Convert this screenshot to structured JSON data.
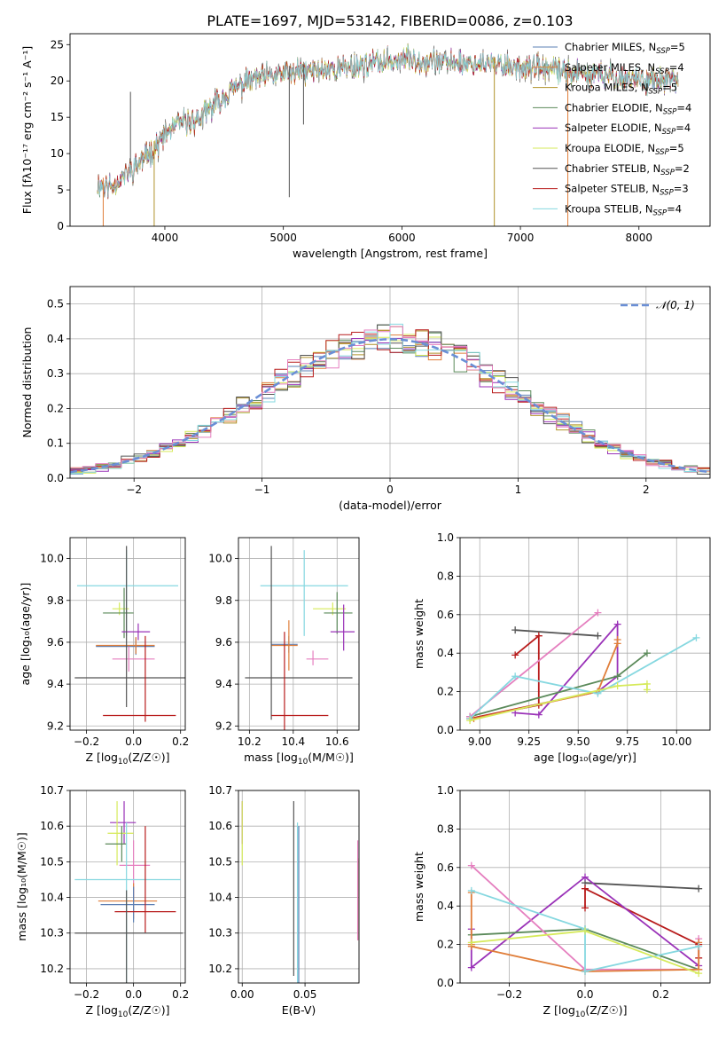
{
  "figure_title": "PLATE=1697, MJD=53142, FIBERID=0086, z=0.103",
  "colors": {
    "chabrier_miles": "#5b7fb4",
    "salpeter_miles": "#e07e3a",
    "kroupa_miles": "#b0922a",
    "chabrier_elodie": "#5b8a5a",
    "salpeter_elodie": "#9a32b8",
    "kroupa_elodie": "#d6ea5a",
    "chabrier_stelib": "#555555",
    "salpeter_stelib": "#b81c1c",
    "kroupa_stelib": "#86d8e0",
    "pink": "#e57fbf",
    "normal_curve": "#6a8fd6"
  },
  "chart_data": [
    {
      "id": "spectrum",
      "type": "line",
      "xlabel": "wavelength [Angstrom, rest frame]",
      "ylabel": "Flux [fλ10⁻¹⁷ erg cm⁻² s⁻¹ A⁻¹]",
      "xlim": [
        3200,
        8600
      ],
      "ylim": [
        0,
        26.5
      ],
      "xticks": [
        4000,
        5000,
        6000,
        7000,
        8000
      ],
      "yticks": [
        0,
        5,
        10,
        15,
        20,
        25
      ],
      "grid": false,
      "legend_position": "top-right",
      "legend": [
        {
          "label": "Chabrier MILES, N_SSP=5",
          "main": "Chabrier MILES, N",
          "sub": "SSP",
          "tail": "=5",
          "color": "#5b7fb4"
        },
        {
          "label": "Salpeter MILES, N_SSP=4",
          "main": "Salpeter MILES, N",
          "sub": "SSP",
          "tail": "=4",
          "color": "#e07e3a"
        },
        {
          "label": "Kroupa MILES, N_SSP=5",
          "main": "Kroupa MILES, N",
          "sub": "SSP",
          "tail": "=5",
          "color": "#b0922a"
        },
        {
          "label": "Chabrier ELODIE, N_SSP=4",
          "main": "Chabrier ELODIE, N",
          "sub": "SSP",
          "tail": "=4",
          "color": "#5b8a5a"
        },
        {
          "label": "Salpeter ELODIE, N_SSP=4",
          "main": "Salpeter ELODIE, N",
          "sub": "SSP",
          "tail": "=4",
          "color": "#9a32b8"
        },
        {
          "label": "Kroupa ELODIE, N_SSP=5",
          "main": "Kroupa ELODIE, N",
          "sub": "SSP",
          "tail": "=5",
          "color": "#d6ea5a"
        },
        {
          "label": "Chabrier STELIB, N_SSP=2",
          "main": "Chabrier STELIB, N",
          "sub": "SSP",
          "tail": "=2",
          "color": "#555555"
        },
        {
          "label": "Salpeter STELIB, N_SSP=3",
          "main": "Salpeter STELIB, N",
          "sub": "SSP",
          "tail": "=3",
          "color": "#b81c1c"
        },
        {
          "label": "Kroupa STELIB, N_SSP=4",
          "main": "Kroupa STELIB, N",
          "sub": "SSP",
          "tail": "=4",
          "color": "#86d8e0"
        }
      ],
      "continuum": [
        [
          3430,
          5.8
        ],
        [
          3550,
          5.5
        ],
        [
          3700,
          7.5
        ],
        [
          3800,
          9.0
        ],
        [
          3900,
          10.5
        ],
        [
          4000,
          12.5
        ],
        [
          4100,
          14.0
        ],
        [
          4300,
          14.8
        ],
        [
          4500,
          18.0
        ],
        [
          4700,
          20.0
        ],
        [
          5000,
          21.0
        ],
        [
          5500,
          21.8
        ],
        [
          6000,
          23.0
        ],
        [
          6500,
          22.5
        ],
        [
          7000,
          22.0
        ],
        [
          7500,
          21.0
        ],
        [
          8000,
          20.2
        ],
        [
          8330,
          19.8
        ]
      ],
      "dips": [
        [
          3480,
          0
        ],
        [
          3710,
          18.5
        ],
        [
          3910,
          0
        ],
        [
          5050,
          4
        ],
        [
          5170,
          14
        ],
        [
          6780,
          0
        ],
        [
          7400,
          0
        ]
      ]
    },
    {
      "id": "residuals",
      "type": "histogram",
      "xlabel": "(data-model)/error",
      "ylabel": "Normed distribution",
      "xlim": [
        -2.5,
        2.5
      ],
      "ylim": [
        0,
        0.55
      ],
      "xticks": [
        -2,
        -1,
        0,
        1,
        2
      ],
      "yticks": [
        0.0,
        0.1,
        0.2,
        0.3,
        0.4,
        0.5
      ],
      "grid": true,
      "legend_position": "top-right",
      "legend": [
        {
          "label": "𝒩(0, 1)",
          "color": "#6a8fd6"
        }
      ],
      "bin_width": 0.1
    },
    {
      "id": "age_vs_Z",
      "type": "errorbar",
      "xlabel_main": "Z [log",
      "xlabel_sub": "10",
      "xlabel_tail": "(Z/Z☉)]",
      "ylabel": "age  [log₁₀(age/yr)]",
      "xlim": [
        -0.27,
        0.22
      ],
      "ylim": [
        9.18,
        10.1
      ],
      "xticks": [
        -0.2,
        0.0,
        0.2
      ],
      "yticks": [
        9.2,
        9.4,
        9.6,
        9.8,
        10.0
      ],
      "grid": true,
      "points": [
        {
          "x": -0.03,
          "xerr": [
            0.21,
            0.22
          ],
          "y": 9.87,
          "yerr": [
            0.24,
            0.17
          ],
          "color": "#86d8e0"
        },
        {
          "x": -0.06,
          "xerr": [
            0.03,
            0.04
          ],
          "y": 9.76,
          "yerr": [
            0.03,
            0.03
          ],
          "color": "#d6ea5a"
        },
        {
          "x": -0.04,
          "xerr": [
            0.09,
            0.04
          ],
          "y": 9.74,
          "yerr": [
            0.12,
            0.12
          ],
          "color": "#5b8a5a"
        },
        {
          "x": 0.02,
          "xerr": [
            0.07,
            0.05
          ],
          "y": 9.65,
          "yerr": [
            0.04,
            0.04
          ],
          "color": "#9a32b8"
        },
        {
          "x": 0.01,
          "xerr": [
            0.17,
            0.08
          ],
          "y": 9.58,
          "yerr": [
            0.04,
            0.04
          ],
          "color": "#5b7fb4"
        },
        {
          "x": 0.01,
          "xerr": [
            0.17,
            0.08
          ],
          "y": 9.585,
          "yerr": [
            0.04,
            0.04
          ],
          "color": "#e07e3a"
        },
        {
          "x": -0.02,
          "xerr": [
            0.07,
            0.11
          ],
          "y": 9.52,
          "yerr": [
            0.06,
            0.06
          ],
          "color": "#e57fbf"
        },
        {
          "x": -0.03,
          "xerr": [
            0.22,
            0.25
          ],
          "y": 9.43,
          "yerr": [
            0.14,
            0.63
          ],
          "color": "#555555"
        },
        {
          "x": 0.05,
          "xerr": [
            0.18,
            0.13
          ],
          "y": 9.25,
          "yerr": [
            0.03,
            0.38
          ],
          "color": "#b81c1c"
        }
      ]
    },
    {
      "id": "age_vs_mass",
      "type": "errorbar",
      "xlabel_main": "mass [log",
      "xlabel_sub": "10",
      "xlabel_tail": "(M/M☉)]",
      "xlim": [
        10.15,
        10.7
      ],
      "ylim": [
        9.18,
        10.1
      ],
      "xticks": [
        10.2,
        10.4,
        10.6
      ],
      "yticks": [
        9.2,
        9.4,
        9.6,
        9.8,
        10.0
      ],
      "grid": true,
      "points": [
        {
          "x": 10.45,
          "xerr": [
            0.2,
            0.2
          ],
          "y": 9.87,
          "yerr": [
            0.24,
            0.17
          ],
          "color": "#86d8e0"
        },
        {
          "x": 10.58,
          "xerr": [
            0.09,
            0.06
          ],
          "y": 9.76,
          "yerr": [
            0.03,
            0.03
          ],
          "color": "#d6ea5a"
        },
        {
          "x": 10.6,
          "xerr": [
            0.06,
            0.07
          ],
          "y": 9.74,
          "yerr": [
            0.1,
            0.1
          ],
          "color": "#5b8a5a"
        },
        {
          "x": 10.63,
          "xerr": [
            0.06,
            0.05
          ],
          "y": 9.65,
          "yerr": [
            0.09,
            0.13
          ],
          "color": "#9a32b8"
        },
        {
          "x": 10.38,
          "xerr": [
            0.08,
            0.04
          ],
          "y": 9.59,
          "yerr": [
            0.04,
            0.04
          ],
          "color": "#5b7fb4"
        },
        {
          "x": 10.38,
          "xerr": [
            0.08,
            0.04
          ],
          "y": 9.585,
          "yerr": [
            0.12,
            0.12
          ],
          "color": "#e07e3a"
        },
        {
          "x": 10.49,
          "xerr": [
            0.03,
            0.07
          ],
          "y": 9.52,
          "yerr": [
            0.03,
            0.04
          ],
          "color": "#e57fbf"
        },
        {
          "x": 10.3,
          "xerr": [
            0.12,
            0.37
          ],
          "y": 9.43,
          "yerr": [
            0.2,
            0.63
          ],
          "color": "#555555"
        },
        {
          "x": 10.36,
          "xerr": [
            0.06,
            0.2
          ],
          "y": 9.25,
          "yerr": [
            0.1,
            0.4
          ],
          "color": "#b81c1c"
        }
      ]
    },
    {
      "id": "mass_weight_vs_age",
      "type": "line",
      "xlabel": "age  [log₁₀(age/yr)]",
      "ylabel": "mass weight",
      "xlim": [
        8.9,
        10.17
      ],
      "ylim": [
        0,
        1.0
      ],
      "xticks": [
        9.0,
        9.25,
        9.5,
        9.75,
        10.0
      ],
      "yticks": [
        0.0,
        0.2,
        0.4,
        0.6,
        0.8,
        1.0
      ],
      "grid": true,
      "series": [
        {
          "color": "#555555",
          "x": [
            9.18,
            9.6
          ],
          "y": [
            0.52,
            0.49
          ]
        },
        {
          "color": "#b81c1c",
          "x": [
            9.18,
            9.3,
            9.3,
            8.95,
            9.6
          ],
          "y": [
            0.39,
            0.49,
            0.13,
            0.06,
            0.2
          ]
        },
        {
          "color": "#9a32b8",
          "x": [
            9.18,
            9.3,
            9.7,
            9.7,
            9.6
          ],
          "y": [
            0.09,
            0.08,
            0.55,
            0.28,
            0.2
          ]
        },
        {
          "color": "#5b8a5a",
          "x": [
            8.95,
            9.7,
            9.85
          ],
          "y": [
            0.07,
            0.28,
            0.4
          ]
        },
        {
          "color": "#e57fbf",
          "x": [
            8.95,
            9.6
          ],
          "y": [
            0.07,
            0.61
          ]
        },
        {
          "color": "#e07e3a",
          "x": [
            8.97,
            9.6,
            9.7,
            9.7
          ],
          "y": [
            0.06,
            0.2,
            0.45,
            0.47
          ]
        },
        {
          "color": "#86d8e0",
          "x": [
            8.95,
            9.18,
            9.6,
            10.1
          ],
          "y": [
            0.06,
            0.28,
            0.19,
            0.48
          ]
        },
        {
          "color": "#d6ea5a",
          "x": [
            8.95,
            9.7,
            9.85,
            9.85
          ],
          "y": [
            0.05,
            0.23,
            0.24,
            0.21
          ]
        }
      ]
    },
    {
      "id": "mass_vs_Z",
      "type": "errorbar",
      "xlabel_main": "Z [log",
      "xlabel_sub": "10",
      "xlabel_tail": "(Z/Z☉)]",
      "ylabel": "mass [log₁₀(M/M☉)]",
      "xlim": [
        -0.27,
        0.22
      ],
      "ylim": [
        10.16,
        10.7
      ],
      "xticks": [
        -0.2,
        0.0,
        0.2
      ],
      "yticks": [
        10.2,
        10.3,
        10.4,
        10.5,
        10.6,
        10.7
      ],
      "grid": true,
      "points": [
        {
          "x": -0.04,
          "xerr": [
            0.06,
            0.05
          ],
          "y": 10.61,
          "yerr": [
            0.06,
            0.06
          ],
          "color": "#9a32b8"
        },
        {
          "x": -0.07,
          "xerr": [
            0.04,
            0.07
          ],
          "y": 10.58,
          "yerr": [
            0.09,
            0.09
          ],
          "color": "#d6ea5a"
        },
        {
          "x": -0.05,
          "xerr": [
            0.07,
            0.02
          ],
          "y": 10.55,
          "yerr": [
            0.05,
            0.05
          ],
          "color": "#5b8a5a"
        },
        {
          "x": 0.0,
          "xerr": [
            0.06,
            0.07
          ],
          "y": 10.49,
          "yerr": [
            0.09,
            0.07
          ],
          "color": "#e57fbf"
        },
        {
          "x": -0.03,
          "xerr": [
            0.22,
            0.23
          ],
          "y": 10.45,
          "yerr": [
            0.31,
            0.16
          ],
          "color": "#86d8e0"
        },
        {
          "x": 0.0,
          "xerr": [
            0.15,
            0.1
          ],
          "y": 10.39,
          "yerr": [
            0.05,
            0.05
          ],
          "color": "#e07e3a"
        },
        {
          "x": 0.0,
          "xerr": [
            0.14,
            0.09
          ],
          "y": 10.38,
          "yerr": [
            0.05,
            0.05
          ],
          "color": "#5b7fb4"
        },
        {
          "x": 0.05,
          "xerr": [
            0.13,
            0.13
          ],
          "y": 10.36,
          "yerr": [
            0.06,
            0.24
          ],
          "color": "#b81c1c"
        },
        {
          "x": -0.03,
          "xerr": [
            0.22,
            0.24
          ],
          "y": 10.3,
          "yerr": [
            0.37,
            0.12
          ],
          "color": "#555555"
        }
      ]
    },
    {
      "id": "mass_vs_ebv",
      "type": "errorbar",
      "xlabel": "E(B-V)",
      "xlim": [
        -0.003,
        0.093
      ],
      "ylim": [
        10.16,
        10.7
      ],
      "xticks": [
        0.0,
        0.05
      ],
      "yticks": [
        10.2,
        10.3,
        10.4,
        10.5,
        10.6,
        10.7
      ],
      "grid": true,
      "points": [
        {
          "x": 0.0,
          "y": 10.61,
          "yerr": [
            0.06,
            0.06
          ],
          "color": "#9a32b8"
        },
        {
          "x": 0.0,
          "y": 10.58,
          "yerr": [
            0.09,
            0.09
          ],
          "color": "#d6ea5a"
        },
        {
          "x": 0.041,
          "y": 10.3,
          "yerr": [
            0.12,
            0.37
          ],
          "color": "#555555"
        },
        {
          "x": 0.044,
          "y": 10.45,
          "yerr": [
            0.31,
            0.16
          ],
          "color": "#86d8e0"
        },
        {
          "x": 0.045,
          "y": 10.45,
          "yerr": [
            0.3,
            0.15
          ],
          "color": "#5b7fb4"
        },
        {
          "x": 0.092,
          "y": 10.39,
          "yerr": [
            0.11,
            0.12
          ],
          "color": "#e07e3a"
        },
        {
          "x": 0.092,
          "y": 10.4,
          "yerr": [
            0.12,
            0.16
          ],
          "color": "#e57fbf"
        }
      ]
    },
    {
      "id": "mass_weight_vs_Z",
      "type": "line",
      "xlabel_main": "Z [log",
      "xlabel_sub": "10",
      "xlabel_tail": "(Z/Z☉)]",
      "ylabel": "mass weight",
      "xlim": [
        -0.33,
        0.33
      ],
      "ylim": [
        0,
        1.0
      ],
      "xticks": [
        -0.2,
        0.0,
        0.2
      ],
      "yticks": [
        0.0,
        0.2,
        0.4,
        0.6,
        0.8,
        1.0
      ],
      "grid": true,
      "series": [
        {
          "color": "#555555",
          "x": [
            0.0,
            0.3
          ],
          "y": [
            0.52,
            0.49
          ]
        },
        {
          "color": "#b81c1c",
          "x": [
            0.0,
            0.0,
            0.3,
            0.3
          ],
          "y": [
            0.39,
            0.49,
            0.2,
            0.13
          ]
        },
        {
          "color": "#9a32b8",
          "x": [
            -0.3,
            -0.3,
            0.0,
            0.3
          ],
          "y": [
            0.28,
            0.08,
            0.55,
            0.09
          ]
        },
        {
          "color": "#5b8a5a",
          "x": [
            -0.3,
            0.0,
            0.3
          ],
          "y": [
            0.25,
            0.28,
            0.07
          ]
        },
        {
          "color": "#e57fbf",
          "x": [
            -0.3,
            0.0,
            0.3,
            0.3
          ],
          "y": [
            0.61,
            0.07,
            0.07,
            0.23
          ]
        },
        {
          "color": "#e07e3a",
          "x": [
            -0.3,
            -0.3,
            -0.3,
            0.0,
            0.3,
            0.3
          ],
          "y": [
            0.47,
            0.2,
            0.19,
            0.06,
            0.07,
            0.21
          ]
        },
        {
          "color": "#86d8e0",
          "x": [
            -0.3,
            0.0,
            0.0,
            0.3
          ],
          "y": [
            0.48,
            0.28,
            0.06,
            0.19
          ]
        },
        {
          "color": "#d6ea5a",
          "x": [
            -0.3,
            0.0,
            0.3
          ],
          "y": [
            0.21,
            0.27,
            0.05
          ]
        }
      ]
    }
  ]
}
